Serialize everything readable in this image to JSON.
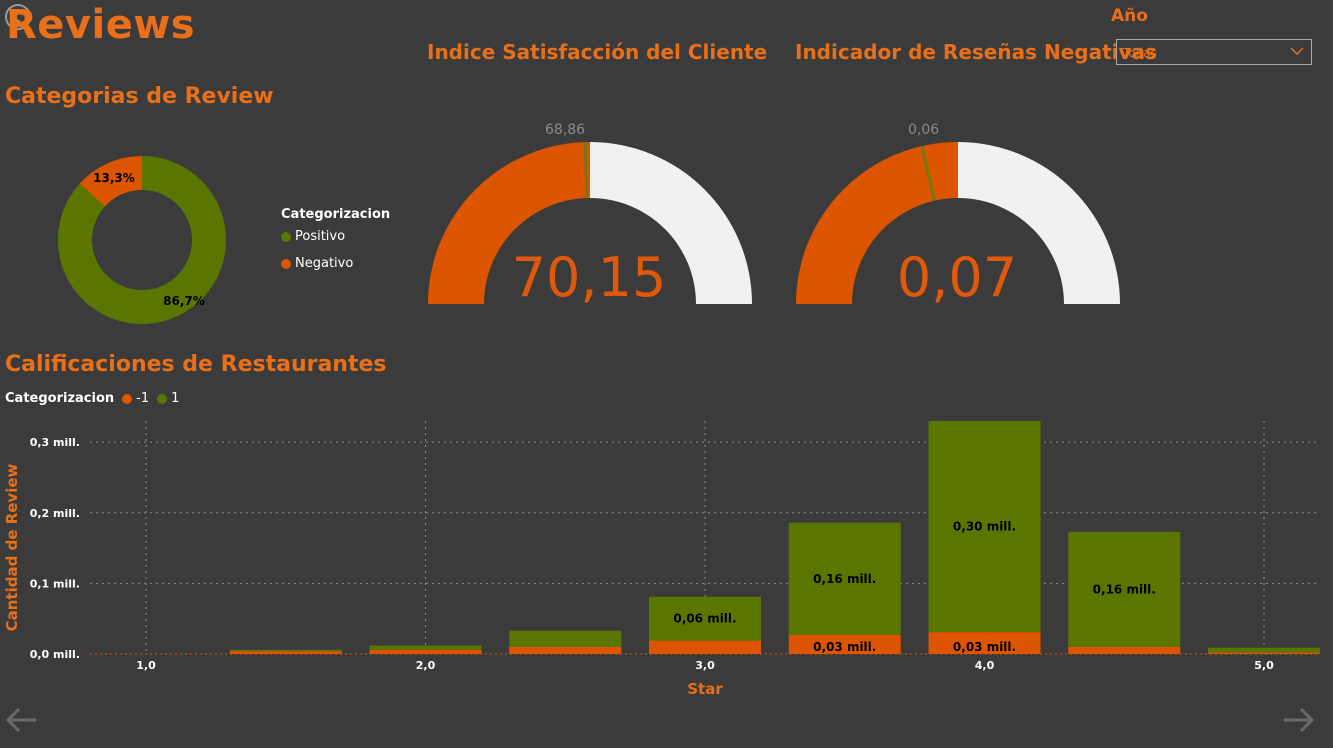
{
  "page": {
    "title": "Reviews",
    "nav_back_icon": "back-arrow-icon",
    "nav_forward_icon": "forward-arrow-icon"
  },
  "colors": {
    "background": "#3b3b3b",
    "accent_orange": "#e8701a",
    "negative": "#de5500",
    "positive": "#5a7600",
    "gauge_remainder": "#f2f1ef"
  },
  "slicer": {
    "label": "Año",
    "selected": "Todas",
    "icon": "chevron-down-icon"
  },
  "donut": {
    "title": "Categorias de Review",
    "legend_title": "Categorizacion",
    "legend_items": [
      {
        "label": "Positivo",
        "color": "#5a7600"
      },
      {
        "label": "Negativo",
        "color": "#de5500"
      }
    ],
    "labels": {
      "positive": "86,7%",
      "negative": "13,3%"
    }
  },
  "gauge_satisfaction": {
    "title": "Indice Satisfacción del Cliente",
    "value_label": "70,15",
    "target_label": "68,86",
    "value": 70.15,
    "target": 68.86,
    "min": 0,
    "max": 140.3
  },
  "gauge_negative": {
    "title": "Indicador de Reseñas Negativas",
    "value_label": "0,07",
    "target_label": "0,06",
    "value": 0.07,
    "target": 0.06,
    "min": 0,
    "max": 0.14
  },
  "bar_chart": {
    "title": "Calificaciones de Restaurantes",
    "legend_title": "Categorizacion",
    "legend_items": [
      {
        "label": "-1",
        "color": "#de5500"
      },
      {
        "label": "1",
        "color": "#5a7600"
      }
    ],
    "ylabel": "Cantidad de Review",
    "xlabel": "Star",
    "y_ticks": [
      "0,0 mill.",
      "0,1 mill.",
      "0,2 mill.",
      "0,3 mill."
    ],
    "x_ticks": [
      "1,0",
      "2,0",
      "3,0",
      "4,0",
      "5,0"
    ]
  },
  "chart_data": [
    {
      "type": "pie",
      "title": "Categorias de Review",
      "legend_title": "Categorizacion",
      "categories": [
        "Positivo",
        "Negativo"
      ],
      "values": [
        86.7,
        13.3
      ],
      "unit": "%"
    },
    {
      "type": "bar",
      "title": "Calificaciones de Restaurantes",
      "xlabel": "Star",
      "ylabel": "Cantidad de Review",
      "stacked": true,
      "x": [
        1.5,
        2.0,
        2.5,
        3.0,
        3.5,
        4.0,
        4.5,
        5.0
      ],
      "xlim": [
        1.0,
        5.2
      ],
      "ylim": [
        0,
        0.33
      ],
      "y_unit": "mill.",
      "legend_placement": "top-left",
      "grid": true,
      "series": [
        {
          "name": "-1",
          "color": "#de5500",
          "values": [
            0.004,
            0.006,
            0.01,
            0.019,
            0.027,
            0.031,
            0.01,
            0.002
          ],
          "data_labels": [
            "",
            "",
            "",
            "",
            "0,03 mill.",
            "0,03 mill.",
            "",
            ""
          ]
        },
        {
          "name": "1",
          "color": "#5a7600",
          "values": [
            0.002,
            0.006,
            0.023,
            0.062,
            0.159,
            0.299,
            0.163,
            0.007
          ],
          "data_labels": [
            "",
            "",
            "",
            "0,06 mill.",
            "0,16 mill.",
            "0,30 mill.",
            "0,16 mill.",
            ""
          ]
        }
      ]
    }
  ]
}
